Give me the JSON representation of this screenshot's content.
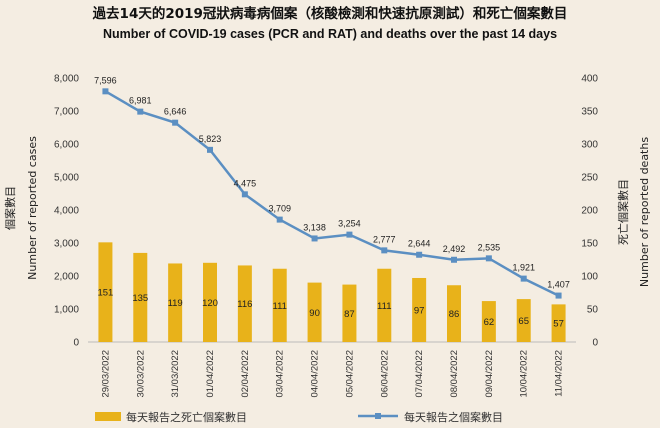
{
  "title_zh": "過去14天的2019冠狀病毒病個案（核酸檢測和快速抗原測試）和死亡個案數目",
  "title_en": "Number of COVID-19 cases (PCR and RAT) and deaths over the past 14 days",
  "colors": {
    "bar": "#e8b21a",
    "line": "#5b8fc2",
    "background": "#f4ede2"
  },
  "chart_data": {
    "type": "bar+line",
    "categories": [
      "29/03/2022",
      "30/03/2022",
      "31/03/2022",
      "01/04/2022",
      "02/04/2022",
      "03/04/2022",
      "04/04/2022",
      "05/04/2022",
      "06/04/2022",
      "07/04/2022",
      "08/04/2022",
      "09/04/2022",
      "10/04/2022",
      "11/04/2022"
    ],
    "series": [
      {
        "name": "每天報告之死亡個案數目",
        "type": "bar",
        "axis": "right",
        "values": [
          151,
          135,
          119,
          120,
          116,
          111,
          90,
          87,
          111,
          97,
          86,
          62,
          65,
          57
        ]
      },
      {
        "name": "每天報告之個案數目",
        "type": "line",
        "axis": "left",
        "values": [
          7596,
          6981,
          6646,
          5823,
          4475,
          3709,
          3138,
          3254,
          2777,
          2644,
          2492,
          2535,
          1921,
          1407
        ]
      }
    ],
    "y_left": {
      "label_zh": "個案數目",
      "label_en": "Number of reported cases",
      "range": [
        0,
        8000
      ],
      "ticks": [
        "0",
        "1,000",
        "2,000",
        "3,000",
        "4,000",
        "5,000",
        "6,000",
        "7,000",
        "8,000"
      ]
    },
    "y_right": {
      "label_zh": "死亡個案數目",
      "label_en": "Number of reported deaths",
      "range": [
        0,
        400
      ],
      "ticks": [
        "0",
        "50",
        "100",
        "150",
        "200",
        "250",
        "300",
        "350",
        "400"
      ]
    },
    "line_value_labels": [
      "7,596",
      "6,981",
      "6,646",
      "5,823",
      "4,475",
      "3,709",
      "3,138",
      "3,254",
      "2,777",
      "2,644",
      "2,492",
      "2,535",
      "1,921",
      "1,407"
    ],
    "grid": false,
    "legend_position": "bottom"
  }
}
